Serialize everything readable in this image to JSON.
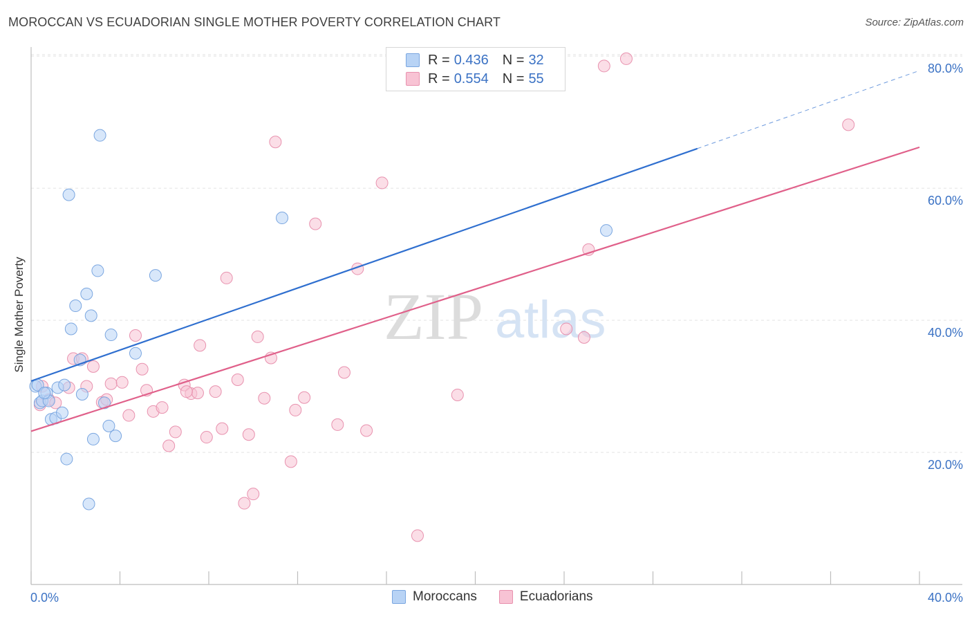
{
  "title": "MOROCCAN VS ECUADORIAN SINGLE MOTHER POVERTY CORRELATION CHART",
  "source": "Source: ZipAtlas.com",
  "watermark": {
    "zip": "ZIP",
    "atlas": "atlas"
  },
  "legend_top": [
    {
      "r_label": "R =",
      "r_value": "0.436",
      "n_label": "N =",
      "n_value": "32"
    },
    {
      "r_label": "R =",
      "r_value": "0.554",
      "n_label": "N =",
      "n_value": "55"
    }
  ],
  "colors": {
    "moroccans_fill": "#b8d3f5",
    "moroccans_stroke": "#7aa6e0",
    "moroccans_line": "#2f6fcf",
    "ecuadorians_fill": "#f8c3d4",
    "ecuadorians_stroke": "#e891ae",
    "ecuadorians_line": "#e0608a",
    "tick_label": "#3b72c4"
  },
  "chart_data": {
    "type": "scatter",
    "title": "MOROCCAN VS ECUADORIAN SINGLE MOTHER POVERTY CORRELATION CHART",
    "xlabel": "",
    "ylabel": "Single Mother Poverty",
    "xlim": [
      0,
      40
    ],
    "ylim": [
      0,
      82
    ],
    "x_ticks_labeled": [
      {
        "value": 0,
        "label": "0.0%"
      },
      {
        "value": 40,
        "label": "40.0%"
      }
    ],
    "y_ticks": [
      {
        "value": 20,
        "label": "20.0%"
      },
      {
        "value": 40,
        "label": "40.0%"
      },
      {
        "value": 60,
        "label": "60.0%"
      },
      {
        "value": 80,
        "label": "80.0%"
      }
    ],
    "grid": "horizontal dashed",
    "legend_position": "bottom-center",
    "series": [
      {
        "name": "Moroccans",
        "r": 0.436,
        "n": 32,
        "trend": {
          "x0": 0,
          "y0": 30.8,
          "x1": 30,
          "y1": 66.0,
          "dashed_to_x": 40,
          "dashed_to_y": 77.8
        },
        "points": [
          [
            0.2,
            30.0
          ],
          [
            0.3,
            30.2
          ],
          [
            0.4,
            27.5
          ],
          [
            0.5,
            27.8
          ],
          [
            0.7,
            29.0
          ],
          [
            0.8,
            27.8
          ],
          [
            0.9,
            25.0
          ],
          [
            1.1,
            25.2
          ],
          [
            1.2,
            29.8
          ],
          [
            1.4,
            26.0
          ],
          [
            1.5,
            30.2
          ],
          [
            1.6,
            19.0
          ],
          [
            1.7,
            59.0
          ],
          [
            1.8,
            38.7
          ],
          [
            2.0,
            42.2
          ],
          [
            2.2,
            34.0
          ],
          [
            2.3,
            28.8
          ],
          [
            2.5,
            44.0
          ],
          [
            2.6,
            12.2
          ],
          [
            2.7,
            40.7
          ],
          [
            2.8,
            22.0
          ],
          [
            3.0,
            47.5
          ],
          [
            3.1,
            68.0
          ],
          [
            3.3,
            27.5
          ],
          [
            3.5,
            24.0
          ],
          [
            3.6,
            37.8
          ],
          [
            3.8,
            22.5
          ],
          [
            4.7,
            35.0
          ],
          [
            5.6,
            46.8
          ],
          [
            11.3,
            55.5
          ],
          [
            25.9,
            53.6
          ],
          [
            0.6,
            29.0
          ]
        ]
      },
      {
        "name": "Ecuadorians",
        "r": 0.554,
        "n": 55,
        "trend": {
          "x0": 0,
          "y0": 23.2,
          "x1": 40,
          "y1": 66.2
        },
        "points": [
          [
            0.4,
            27.2
          ],
          [
            0.5,
            30.0
          ],
          [
            0.8,
            28.0
          ],
          [
            1.1,
            27.5
          ],
          [
            1.7,
            29.8
          ],
          [
            1.9,
            34.2
          ],
          [
            2.3,
            34.2
          ],
          [
            2.5,
            30.0
          ],
          [
            2.8,
            33.0
          ],
          [
            3.2,
            27.6
          ],
          [
            3.4,
            28.0
          ],
          [
            3.6,
            30.4
          ],
          [
            4.1,
            30.6
          ],
          [
            4.4,
            25.6
          ],
          [
            4.7,
            37.7
          ],
          [
            5.0,
            32.6
          ],
          [
            5.2,
            29.4
          ],
          [
            5.5,
            26.2
          ],
          [
            5.9,
            26.8
          ],
          [
            6.2,
            21.0
          ],
          [
            6.5,
            23.1
          ],
          [
            6.9,
            30.2
          ],
          [
            7.2,
            28.9
          ],
          [
            7.5,
            29.0
          ],
          [
            7.6,
            36.2
          ],
          [
            7.9,
            22.3
          ],
          [
            8.3,
            29.2
          ],
          [
            8.6,
            23.6
          ],
          [
            8.8,
            46.4
          ],
          [
            9.3,
            31.0
          ],
          [
            9.6,
            12.3
          ],
          [
            9.8,
            22.7
          ],
          [
            10.0,
            13.7
          ],
          [
            10.2,
            37.5
          ],
          [
            10.5,
            28.2
          ],
          [
            10.8,
            34.3
          ],
          [
            11.7,
            18.6
          ],
          [
            11.9,
            26.4
          ],
          [
            12.3,
            28.3
          ],
          [
            12.8,
            54.6
          ],
          [
            13.8,
            24.2
          ],
          [
            14.1,
            32.1
          ],
          [
            14.7,
            47.8
          ],
          [
            15.1,
            23.3
          ],
          [
            15.8,
            60.8
          ],
          [
            11.0,
            67.0
          ],
          [
            17.4,
            7.4
          ],
          [
            19.2,
            28.7
          ],
          [
            24.1,
            38.7
          ],
          [
            24.9,
            37.4
          ],
          [
            25.1,
            50.7
          ],
          [
            25.8,
            78.5
          ],
          [
            26.8,
            79.6
          ],
          [
            36.8,
            69.6
          ],
          [
            7.0,
            29.2
          ]
        ]
      }
    ]
  },
  "bottom_legend": [
    {
      "label": "Moroccans"
    },
    {
      "label": "Ecuadorians"
    }
  ]
}
